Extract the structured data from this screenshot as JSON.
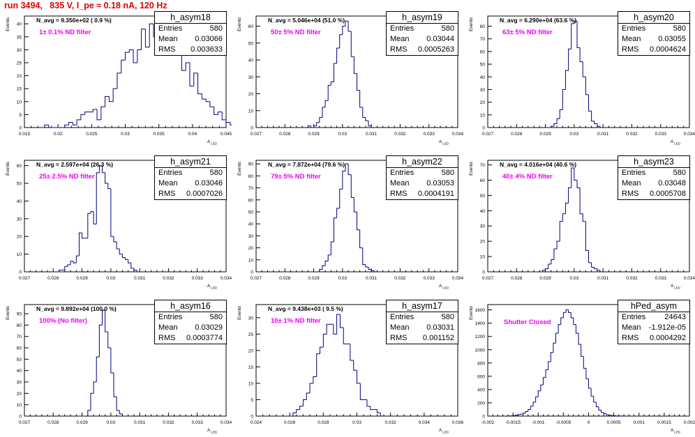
{
  "title": "run 3494,   835 V, I_pe ≈ 0.18 nA, 120 Hz",
  "chart_data": [
    {
      "type": "histogram",
      "name": "h_asym18",
      "ylabel": "Events",
      "xlabel": "A_LED",
      "stats": {
        "Entries": "580",
        "Mean": "0.03066",
        "RMS": "0.003633"
      },
      "n_avg_label": "N_avg = 9.350e+02 ( 0.9 %)",
      "filter_label": "1± 0.1% ND filter",
      "xlim": [
        0.015,
        0.045
      ],
      "xticks": [
        "0.015",
        "0.02",
        "0.025",
        "0.03",
        "0.035",
        "0.04",
        "0.045"
      ],
      "ylim": [
        0,
        43
      ],
      "yticks": [
        0,
        5,
        10,
        15,
        20,
        25,
        30,
        35,
        40
      ],
      "bin_start": 0.0174,
      "bin_width": 0.0006,
      "counts": [
        0,
        1,
        0,
        0,
        0,
        0,
        1,
        2,
        1,
        3,
        5,
        6,
        6,
        7,
        3,
        8,
        12,
        10,
        15,
        21,
        26,
        29,
        30,
        25,
        30,
        38,
        31,
        40,
        35,
        43,
        32,
        40,
        38,
        32,
        28,
        22,
        25,
        16,
        21,
        13,
        11,
        10,
        8,
        5,
        6,
        3,
        2,
        1,
        0,
        0
      ]
    },
    {
      "type": "histogram",
      "name": "h_asym19",
      "ylabel": "Events",
      "xlabel": "A_LED",
      "stats": {
        "Entries": "580",
        "Mean": "0.03044",
        "RMS": "0.0005263"
      },
      "n_avg_label": "N_avg = 5.046e+04 (51.0 %)",
      "filter_label": "50± 5% ND filter",
      "xlim": [
        0.027,
        0.034
      ],
      "xticks": [
        "0.027",
        "0.028",
        "0.029",
        "0.03",
        "0.031",
        "0.032",
        "0.033",
        "0.034"
      ],
      "ylim": [
        0,
        66
      ],
      "yticks": [
        0,
        10,
        20,
        30,
        40,
        50,
        60
      ],
      "bin_start": 0.0288,
      "bin_width": 0.0001,
      "counts": [
        1,
        0,
        1,
        3,
        6,
        12,
        16,
        25,
        27,
        38,
        47,
        55,
        60,
        63,
        57,
        42,
        32,
        22,
        12,
        6,
        4,
        1
      ]
    },
    {
      "type": "histogram",
      "name": "h_asym20",
      "ylabel": "Events",
      "xlabel": "A_LED",
      "stats": {
        "Entries": "580",
        "Mean": "0.03055",
        "RMS": "0.0004624"
      },
      "n_avg_label": "N_avg = 6.290e+04 (63.6 %)",
      "filter_label": "63± 5% ND filter",
      "xlim": [
        0.027,
        0.034
      ],
      "xticks": [
        "0.027",
        "0.028",
        "0.029",
        "0.03",
        "0.031",
        "0.032",
        "0.033",
        "0.034"
      ],
      "ylim": [
        0,
        88
      ],
      "yticks": [
        0,
        10,
        20,
        30,
        40,
        50,
        60,
        70,
        80
      ],
      "bin_start": 0.0292,
      "bin_width": 0.0001,
      "counts": [
        1,
        3,
        7,
        14,
        30,
        45,
        62,
        82,
        84,
        63,
        52,
        40,
        26,
        13,
        5,
        3,
        1
      ]
    },
    {
      "type": "histogram",
      "name": "h_asym21",
      "ylabel": "Events",
      "xlabel": "A_LED",
      "stats": {
        "Entries": "580",
        "Mean": "0.03046",
        "RMS": "0.0007026"
      },
      "n_avg_label": "N_avg = 2.597e+04 (26.3 %)",
      "filter_label": "25± 2.5% ND filter",
      "xlim": [
        0.027,
        0.034
      ],
      "xticks": [
        "0.027",
        "0.028",
        "0.029",
        "0.03",
        "0.031",
        "0.032",
        "0.033",
        "0.034"
      ],
      "ylim": [
        0,
        63
      ],
      "yticks": [
        0,
        10,
        20,
        30,
        40,
        50,
        60
      ],
      "bin_start": 0.0282,
      "bin_width": 0.0001,
      "counts": [
        1,
        1,
        3,
        4,
        6,
        5,
        9,
        22,
        19,
        19,
        33,
        34,
        27,
        56,
        60,
        56,
        50,
        47,
        20,
        17,
        13,
        10,
        8,
        7,
        5,
        2,
        1,
        0
      ]
    },
    {
      "type": "histogram",
      "name": "h_asym22",
      "ylabel": "Events",
      "xlabel": "A_LED",
      "stats": {
        "Entries": "580",
        "Mean": "0.03053",
        "RMS": "0.0004191"
      },
      "n_avg_label": "N_avg = 7.872e+04 (79.6 %)",
      "filter_label": "79± 5% ND filter",
      "xlim": [
        0.027,
        0.034
      ],
      "xticks": [
        "0.027",
        "0.028",
        "0.029",
        "0.03",
        "0.031",
        "0.032",
        "0.033",
        "0.034"
      ],
      "ylim": [
        0,
        93
      ],
      "yticks": [
        0,
        10,
        20,
        30,
        40,
        50,
        60,
        70,
        80,
        90
      ],
      "bin_start": 0.0292,
      "bin_width": 0.0001,
      "counts": [
        2,
        5,
        9,
        14,
        25,
        45,
        53,
        69,
        84,
        90,
        81,
        62,
        50,
        35,
        20,
        6,
        4,
        2,
        1
      ]
    },
    {
      "type": "histogram",
      "name": "h_asym23",
      "ylabel": "Events",
      "xlabel": "A_LED",
      "stats": {
        "Entries": "580",
        "Mean": "0.03048",
        "RMS": "0.0005708"
      },
      "n_avg_label": "N_avg = 4.016e+04 (40.6 %)",
      "filter_label": "40± 4% ND filter",
      "xlim": [
        0.027,
        0.034
      ],
      "xticks": [
        "0.027",
        "0.028",
        "0.029",
        "0.03",
        "0.031",
        "0.032",
        "0.033",
        "0.034"
      ],
      "ylim": [
        0,
        73
      ],
      "yticks": [
        0,
        10,
        20,
        30,
        40,
        50,
        60,
        70
      ],
      "bin_start": 0.0289,
      "bin_width": 0.0001,
      "counts": [
        1,
        2,
        5,
        8,
        15,
        20,
        33,
        38,
        45,
        55,
        68,
        60,
        55,
        38,
        33,
        14,
        6,
        3,
        2,
        1
      ]
    },
    {
      "type": "histogram",
      "name": "h_asym16",
      "ylabel": "Events",
      "xlabel": "A_LED",
      "stats": {
        "Entries": "580",
        "Mean": "0.03029",
        "RMS": "0.0003774"
      },
      "n_avg_label": "N_avg = 9.892e+04 (100.0 %)",
      "filter_label": "100% (No filter)",
      "xlim": [
        0.027,
        0.034
      ],
      "xticks": [
        "0.027",
        "0.028",
        "0.029",
        "0.03",
        "0.031",
        "0.032",
        "0.033",
        "0.034"
      ],
      "ylim": [
        0,
        98
      ],
      "yticks": [
        0,
        10,
        20,
        30,
        40,
        50,
        60,
        70,
        80,
        90
      ],
      "bin_start": 0.0292,
      "bin_width": 0.0001,
      "counts": [
        5,
        20,
        30,
        52,
        80,
        93,
        74,
        60,
        38,
        17,
        5,
        2
      ]
    },
    {
      "type": "histogram",
      "name": "h_asym17",
      "ylabel": "Events",
      "xlabel": "A_LED",
      "stats": {
        "Entries": "580",
        "Mean": "0.03031",
        "RMS": "0.001152"
      },
      "n_avg_label": "N_avg = 9.438e+03 ( 9.5 %)",
      "filter_label": "10± 1% ND filter",
      "xlim": [
        0.024,
        0.036
      ],
      "xticks": [
        "0.024",
        "0.026",
        "0.028",
        "0.03",
        "0.032",
        "0.034",
        "0.036"
      ],
      "ylim": [
        0,
        34
      ],
      "yticks": [
        0,
        5,
        10,
        15,
        20,
        25,
        30
      ],
      "bin_start": 0.0262,
      "bin_width": 0.0002,
      "counts": [
        1,
        2,
        3,
        5,
        7,
        10,
        12,
        19,
        21,
        25,
        28,
        28,
        25,
        31,
        27,
        22,
        22,
        17,
        14,
        10,
        5,
        5,
        3,
        2,
        2,
        1
      ]
    },
    {
      "type": "histogram",
      "name": "hPed_asym",
      "ylabel": "Events",
      "xlabel": "A_LED",
      "stats": {
        "Entries": "24643",
        "Mean": "-1.912e-05",
        "RMS": "0.0004292"
      },
      "n_avg_label": "",
      "filter_label": "Shutter Closed",
      "xlim": [
        -0.002,
        0.002
      ],
      "xticks": [
        "-0.002",
        "-0.0015",
        "-0.001",
        "-0.0005",
        "0",
        "0.0005",
        "0.001",
        "0.0015",
        "0.002"
      ],
      "ylim": [
        0,
        1680
      ],
      "yticks": [
        0,
        200,
        400,
        600,
        800,
        1000,
        1200,
        1400,
        1600
      ],
      "bin_start": -0.0016,
      "bin_width": 5e-05,
      "counts": [
        2,
        4,
        8,
        14,
        22,
        30,
        45,
        70,
        100,
        150,
        210,
        290,
        380,
        470,
        580,
        700,
        820,
        960,
        1100,
        1250,
        1380,
        1480,
        1560,
        1600,
        1560,
        1480,
        1380,
        1250,
        1080,
        900,
        720,
        560,
        420,
        300,
        210,
        140,
        90,
        55,
        35,
        20,
        12,
        8,
        5,
        3,
        2,
        1,
        1
      ]
    }
  ]
}
